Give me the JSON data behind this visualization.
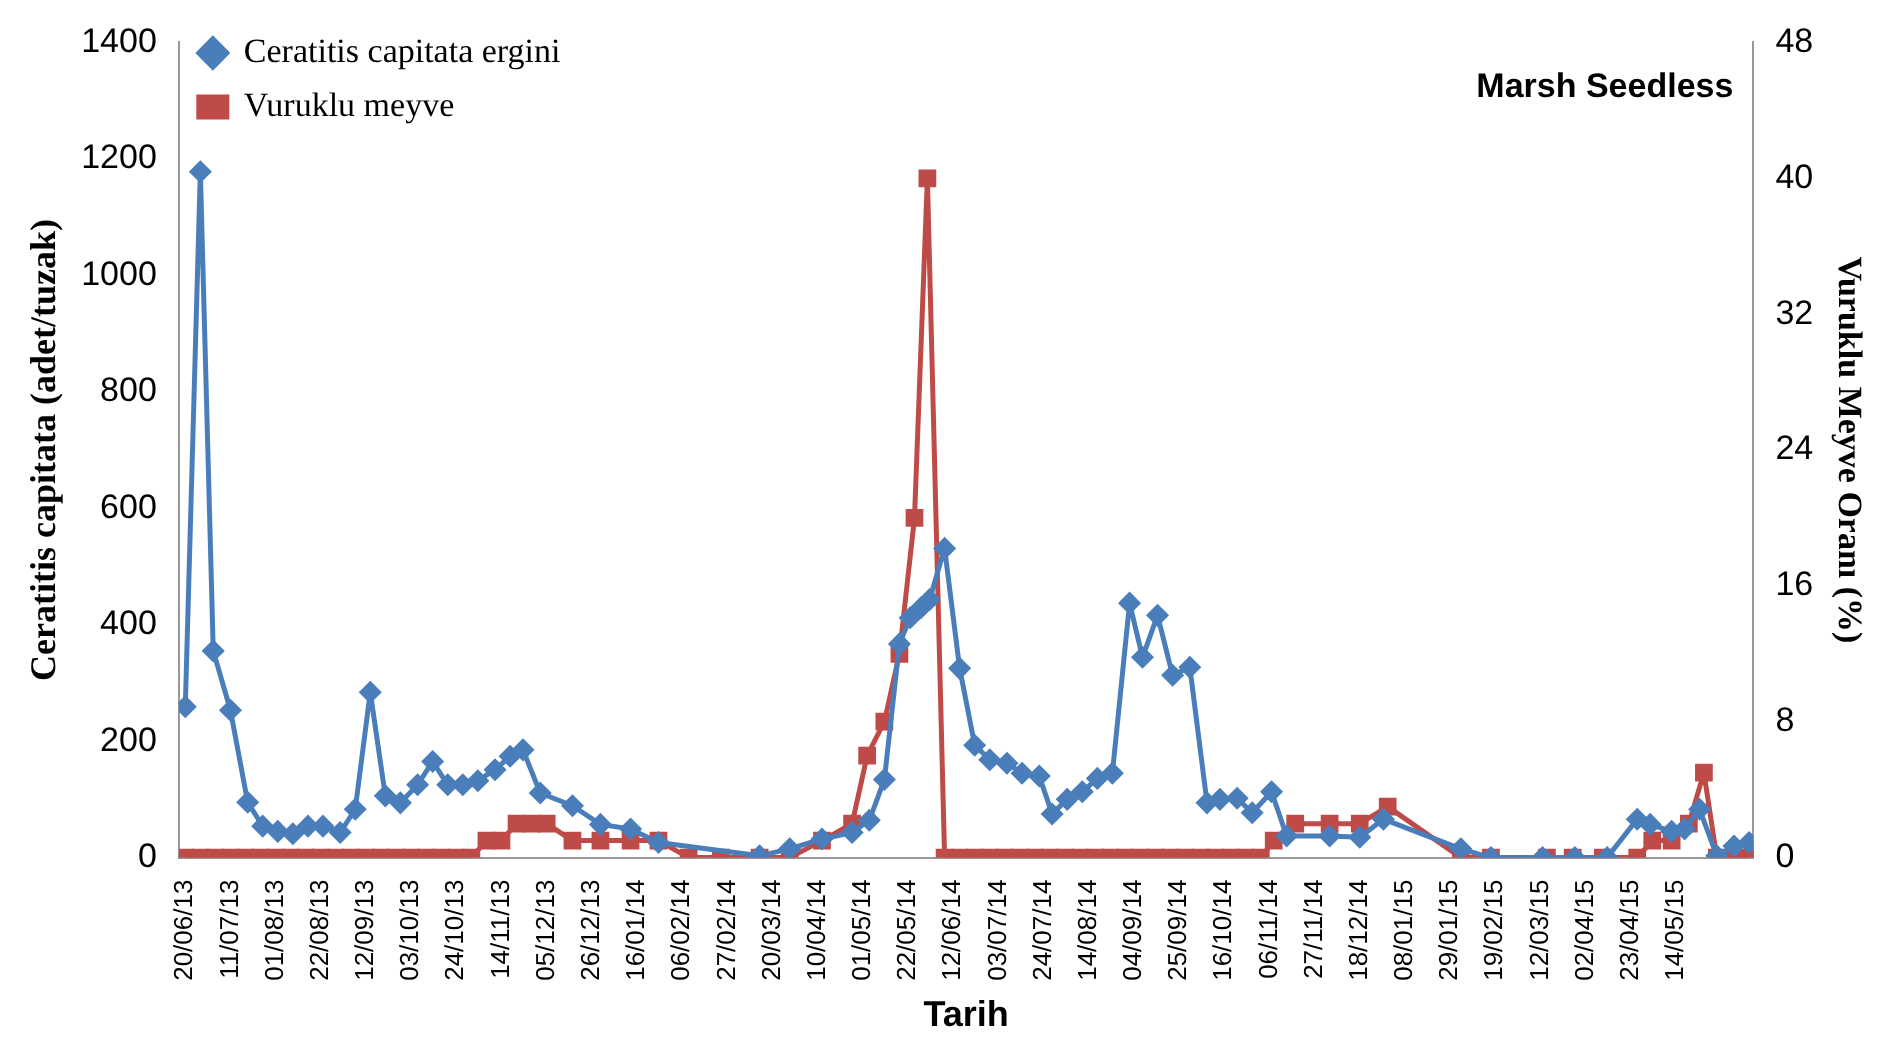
{
  "chart_data": {
    "type": "line",
    "title": "Marsh Seedless",
    "xlabel": "Tarih",
    "ylabel": "Ceratitis capitata (adet/tuzak)",
    "y2label": "Vuruklu Meyve Oranı (%)",
    "legend": "top left",
    "grid": false,
    "line_style": "solid",
    "xlim": [
      "2013-06-17",
      "2015-06-19"
    ],
    "xticks": [
      {
        "value": "2013-06-20",
        "label": "20/06/13"
      },
      {
        "value": "2013-07-11",
        "label": "11/07/13"
      },
      {
        "value": "2013-08-01",
        "label": "01/08/13"
      },
      {
        "value": "2013-08-22",
        "label": "22/08/13"
      },
      {
        "value": "2013-09-12",
        "label": "12/09/13"
      },
      {
        "value": "2013-10-03",
        "label": "03/10/13"
      },
      {
        "value": "2013-10-24",
        "label": "24/10/13"
      },
      {
        "value": "2013-11-14",
        "label": "14/11/13"
      },
      {
        "value": "2013-12-05",
        "label": "05/12/13"
      },
      {
        "value": "2013-12-26",
        "label": "26/12/13"
      },
      {
        "value": "2014-01-16",
        "label": "16/01/14"
      },
      {
        "value": "2014-02-06",
        "label": "06/02/14"
      },
      {
        "value": "2014-02-27",
        "label": "27/02/14"
      },
      {
        "value": "2014-03-20",
        "label": "20/03/14"
      },
      {
        "value": "2014-04-10",
        "label": "10/04/14"
      },
      {
        "value": "2014-05-01",
        "label": "01/05/14"
      },
      {
        "value": "2014-05-22",
        "label": "22/05/14"
      },
      {
        "value": "2014-06-12",
        "label": "12/06/14"
      },
      {
        "value": "2014-07-03",
        "label": "03/07/14"
      },
      {
        "value": "2014-07-24",
        "label": "24/07/14"
      },
      {
        "value": "2014-08-14",
        "label": "14/08/14"
      },
      {
        "value": "2014-09-04",
        "label": "04/09/14"
      },
      {
        "value": "2014-09-25",
        "label": "25/09/14"
      },
      {
        "value": "2014-10-16",
        "label": "16/10/14"
      },
      {
        "value": "2014-11-06",
        "label": "06/11/14"
      },
      {
        "value": "2014-11-27",
        "label": "27/11/14"
      },
      {
        "value": "2014-12-18",
        "label": "18/12/14"
      },
      {
        "value": "2015-01-08",
        "label": "08/01/15"
      },
      {
        "value": "2015-01-29",
        "label": "29/01/15"
      },
      {
        "value": "2015-02-19",
        "label": "19/02/15"
      },
      {
        "value": "2015-03-12",
        "label": "12/03/15"
      },
      {
        "value": "2015-04-02",
        "label": "02/04/15"
      },
      {
        "value": "2015-04-23",
        "label": "23/04/15"
      },
      {
        "value": "2015-05-14",
        "label": "14/05/15"
      }
    ],
    "ylim": [
      0,
      1400
    ],
    "yticks": [
      0,
      200,
      400,
      600,
      800,
      1000,
      1200,
      1400
    ],
    "y2lim": [
      0,
      48
    ],
    "y2ticks": [
      0,
      8,
      16,
      24,
      32,
      40,
      48
    ],
    "series": [
      {
        "name": "Ceratitis capitata ergini",
        "color": "#4a7ebb",
        "marker": "diamond",
        "x": [
          "2013-06-20",
          "2013-06-27",
          "2013-07-03",
          "2013-07-11",
          "2013-07-19",
          "2013-07-26",
          "2013-08-02",
          "2013-08-09",
          "2013-08-16",
          "2013-08-23",
          "2013-08-31",
          "2013-09-07",
          "2013-09-14",
          "2013-09-21",
          "2013-09-28",
          "2013-10-06",
          "2013-10-13",
          "2013-10-20",
          "2013-10-27",
          "2013-11-03",
          "2013-11-11",
          "2013-11-18",
          "2013-11-24",
          "2013-12-02",
          "2013-12-17",
          "2013-12-30",
          "2014-01-13",
          "2014-01-26",
          "2014-03-14",
          "2014-03-28",
          "2014-04-12",
          "2014-04-26",
          "2014-05-04",
          "2014-05-11",
          "2014-05-18",
          "2014-05-23",
          "2014-05-28",
          "2014-06-01",
          "2014-06-08",
          "2014-06-15",
          "2014-06-22",
          "2014-06-29",
          "2014-07-07",
          "2014-07-14",
          "2014-07-22",
          "2014-07-28",
          "2014-08-04",
          "2014-08-11",
          "2014-08-18",
          "2014-08-25",
          "2014-09-02",
          "2014-09-08",
          "2014-09-15",
          "2014-09-22",
          "2014-09-30",
          "2014-10-08",
          "2014-10-14",
          "2014-10-22",
          "2014-10-29",
          "2014-11-07",
          "2014-11-14",
          "2014-12-04",
          "2014-12-18",
          "2014-12-29",
          "2015-02-03",
          "2015-02-17",
          "2015-03-13",
          "2015-03-28",
          "2015-04-12",
          "2015-04-26",
          "2015-05-02",
          "2015-05-12",
          "2015-05-18",
          "2015-05-25",
          "2015-06-02",
          "2015-06-10",
          "2015-06-17"
        ],
        "values": [
          259,
          1178,
          355,
          253,
          95,
          54,
          45,
          41,
          54,
          54,
          43,
          83,
          284,
          106,
          94,
          125,
          165,
          125,
          125,
          132,
          151,
          174,
          185,
          111,
          89,
          57,
          49,
          26,
          3,
          15,
          32,
          43,
          64,
          134,
          367,
          412,
          429,
          443,
          531,
          325,
          193,
          168,
          162,
          145,
          140,
          75,
          100,
          113,
          136,
          145,
          437,
          344,
          416,
          313,
          327,
          94,
          100,
          102,
          77,
          113,
          37,
          37,
          35,
          66,
          15,
          0,
          0,
          0,
          0,
          66,
          57,
          45,
          49,
          83,
          3,
          20,
          26
        ]
      },
      {
        "name": "Vuruklu meyve",
        "color": "#be4b48",
        "marker": "square",
        "axis": "y2",
        "x": [
          "2013-06-20",
          "2013-06-27",
          "2013-07-04",
          "2013-07-11",
          "2013-07-18",
          "2013-07-25",
          "2013-08-01",
          "2013-08-08",
          "2013-08-15",
          "2013-08-22",
          "2013-08-29",
          "2013-09-05",
          "2013-09-12",
          "2013-09-19",
          "2013-09-26",
          "2013-10-03",
          "2013-10-10",
          "2013-10-17",
          "2013-10-24",
          "2013-10-31",
          "2013-11-07",
          "2013-11-14",
          "2013-11-21",
          "2013-11-28",
          "2013-12-05",
          "2013-12-17",
          "2013-12-30",
          "2014-01-13",
          "2014-01-26",
          "2014-02-09",
          "2014-02-24",
          "2014-03-14",
          "2014-03-28",
          "2014-04-12",
          "2014-04-26",
          "2014-05-03",
          "2014-05-11",
          "2014-05-18",
          "2014-05-25",
          "2014-05-31",
          "2014-06-08",
          "2014-06-15",
          "2014-06-22",
          "2014-06-29",
          "2014-07-06",
          "2014-07-13",
          "2014-07-20",
          "2014-07-27",
          "2014-08-03",
          "2014-08-10",
          "2014-08-17",
          "2014-08-24",
          "2014-08-31",
          "2014-09-07",
          "2014-09-14",
          "2014-09-21",
          "2014-09-28",
          "2014-10-05",
          "2014-10-12",
          "2014-10-19",
          "2014-10-26",
          "2014-11-02",
          "2014-11-08",
          "2014-11-18",
          "2014-12-04",
          "2014-12-18",
          "2014-12-31",
          "2015-02-03",
          "2015-02-17",
          "2015-03-15",
          "2015-03-27",
          "2015-04-10",
          "2015-04-26",
          "2015-05-03",
          "2015-05-12",
          "2015-05-20",
          "2015-05-27",
          "2015-06-02",
          "2015-06-10",
          "2015-06-17"
        ],
        "values": [
          0,
          0,
          0,
          0,
          0,
          0,
          0,
          0,
          0,
          0,
          0,
          0,
          0,
          0,
          0,
          0,
          0,
          0,
          0,
          0,
          1,
          1,
          2,
          2,
          2,
          1,
          1,
          1,
          1,
          0,
          0,
          0,
          0,
          1,
          2,
          6,
          8,
          12,
          20,
          40,
          0,
          0,
          0,
          0,
          0,
          0,
          0,
          0,
          0,
          0,
          0,
          0,
          0,
          0,
          0,
          0,
          0,
          0,
          0,
          0,
          0,
          0,
          1,
          2,
          2,
          2,
          3,
          0,
          0,
          0,
          0,
          0,
          0,
          1,
          1,
          2,
          5,
          0,
          0,
          0
        ]
      }
    ]
  }
}
